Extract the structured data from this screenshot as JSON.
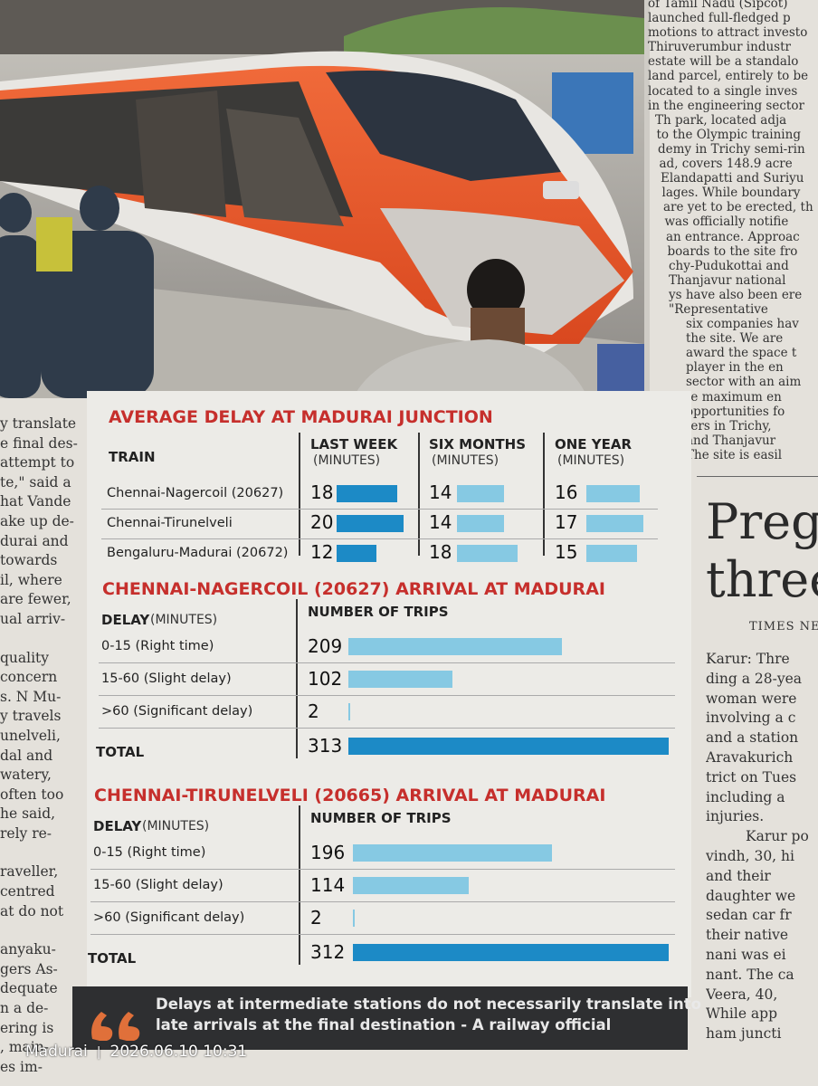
{
  "left_column": [
    "y translate",
    "e final des-",
    "attempt to",
    "te,\" said a",
    "hat Vande",
    "ake up de-",
    "durai and",
    "towards",
    "il, where",
    "are fewer,",
    "ual arriv-",
    "",
    "quality",
    "concern",
    "s. N Mu-",
    "y travels",
    "unelveli,",
    "dal and",
    "watery,",
    "often too",
    "he said,",
    "rely re-",
    "",
    "raveller,",
    "centred",
    "at do not",
    "",
    "anyaku-",
    "gers As-",
    "dequate",
    "n a de-",
    "ering is",
    ", main-",
    "es im-"
  ],
  "right_column_top": [
    "of Tamil Nadu (Sipcot)",
    "launched full-fledged p",
    "motions to attract investo",
    "Thiruverumbur industr",
    "estate will be a standalo",
    "land parcel, entirely to be",
    "located to a single inves",
    "in the engineering sector",
    "Th park, located adja",
    "to the Olympic training",
    "demy in Trichy semi-rin",
    "ad, covers 148.9 acre",
    "Elandapatti and Suriyu",
    "lages. While boundary",
    "are yet to be erected, th",
    "was officially notifie",
    "an entrance. Approac",
    "boards to the site fro",
    "chy-Pudukottai and",
    "Thanjavur national",
    "ys have also been ere",
    "\"Representative",
    "six companies hav",
    "the site. We are",
    "award the space t",
    "player in the en",
    "sector with an aim",
    "te maximum en",
    "opportunities fo",
    "ters in Trichy,",
    "and Thanjavur",
    "The site is easil"
  ],
  "right_story": {
    "headline": [
      "Pregn",
      "three"
    ],
    "byline": "TIMES NEW",
    "lines": [
      "Karur: Thre",
      "ding a 28-yea",
      "woman were",
      "involving a c",
      "and a station",
      "Aravakurich",
      "trict on Tues",
      "including a",
      "injuries.",
      "Karur po",
      "vindh, 30, hi",
      "and their",
      "daughter we",
      "sedan car fr",
      "their native",
      "nani was ei",
      "nant. The ca",
      "Veera, 40,",
      "While app",
      "ham juncti"
    ]
  },
  "average_delay": {
    "title": "AVERAGE DELAY AT MADURAI JUNCTION",
    "train_header": "TRAIN",
    "periods": [
      {
        "name": "LAST WEEK",
        "unit": "(MINUTES)"
      },
      {
        "name": "SIX MONTHS",
        "unit": "(MINUTES)"
      },
      {
        "name": "ONE YEAR",
        "unit": "(MINUTES)"
      }
    ],
    "rows": [
      {
        "train": "Chennai-Nagercoil (20627)",
        "delays": [
          18,
          14,
          16
        ]
      },
      {
        "train": "Chennai-Tirunelveli",
        "delays": [
          20,
          14,
          17
        ]
      },
      {
        "train": "Bengaluru-Madurai (20672)",
        "delays": [
          12,
          18,
          15
        ]
      }
    ]
  },
  "nagercoil_arrival": {
    "title": "CHENNAI-NAGERCOIL (20627) ARRIVAL AT MADURAI",
    "delay_header": "DELAY",
    "delay_unit": "(MINUTES)",
    "trips_header": "NUMBER OF TRIPS",
    "rows": [
      {
        "label": "0-15 (Right time)",
        "trips": 209
      },
      {
        "label": "15-60 (Slight delay)",
        "trips": 102
      },
      {
        "label": ">60 (Significant delay)",
        "trips": 2
      }
    ],
    "total_label": "TOTAL",
    "total": 313
  },
  "tirunelveli_arrival": {
    "title": "CHENNAI-TIRUNELVELI (20665) ARRIVAL AT MADURAI",
    "delay_header": "DELAY",
    "delay_unit": "(MINUTES)",
    "trips_header": "NUMBER OF TRIPS",
    "rows": [
      {
        "label": "0-15 (Right time)",
        "trips": 196
      },
      {
        "label": "15-60 (Slight delay)",
        "trips": 114
      },
      {
        "label": ">60 (Significant delay)",
        "trips": 2
      }
    ],
    "total_label": "TOTAL",
    "total": 312
  },
  "quote": {
    "lines": [
      "Delays at intermediate stations do not necessarily translate into",
      "late arrivals at the final destination - A railway official"
    ]
  },
  "watermark": {
    "place": "Madurai",
    "separator": "|",
    "datetime": "2026.06.10 10:31"
  }
}
